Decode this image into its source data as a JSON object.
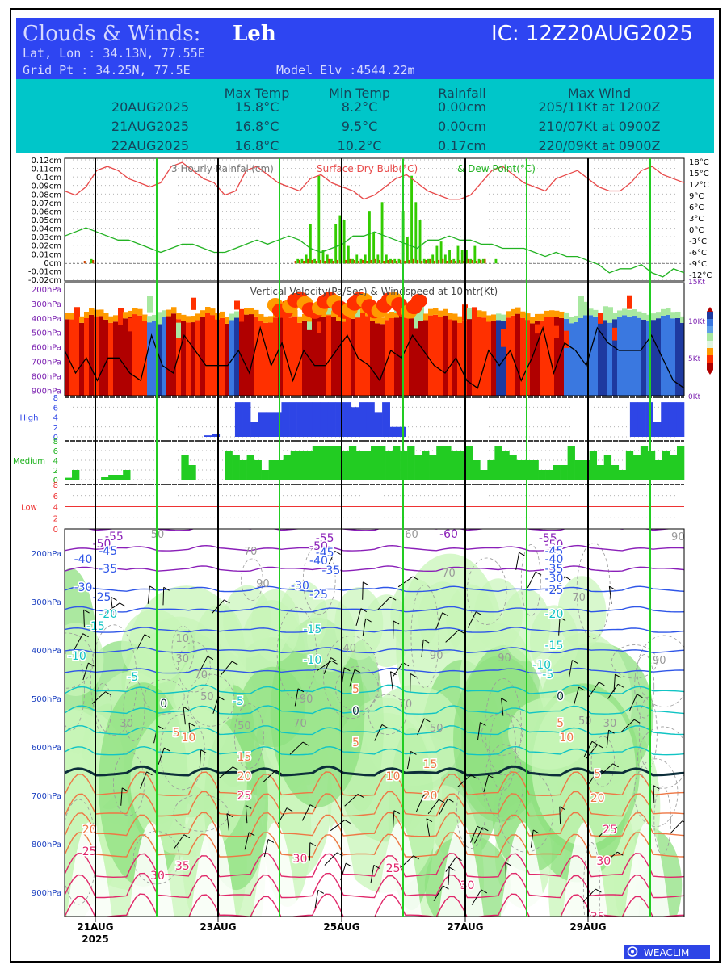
{
  "header": {
    "title_prefix": "Clouds & Winds:",
    "station": "Leh",
    "ic": "IC: 12Z20AUG2025",
    "latlon": "Lat, Lon : 34.13N, 77.55E",
    "gridpt": "Grid Pt  : 34.25N, 77.5E",
    "model_elv": "Model Elv :4544.22m",
    "colors": {
      "header_bg": "#2e45f2",
      "summary_bg": "#00c6c9",
      "title_text": "#d6d9ff"
    }
  },
  "summary": {
    "headers": [
      "Max Temp",
      "Min Temp",
      "Rainfall",
      "Max Wind"
    ],
    "rows": [
      {
        "date": "20AUG2025",
        "max_temp": "15.8°C",
        "min_temp": "8.2°C",
        "rainfall": "0.00cm",
        "max_wind": "205/11Kt at 1200Z"
      },
      {
        "date": "21AUG2025",
        "max_temp": "16.8°C",
        "min_temp": "9.5°C",
        "rainfall": "0.00cm",
        "max_wind": "210/07Kt at 0900Z"
      },
      {
        "date": "22AUG2025",
        "max_temp": "16.8°C",
        "min_temp": "10.2°C",
        "rainfall": "0.17cm",
        "max_wind": "220/09Kt at 0900Z"
      }
    ]
  },
  "chart_data": [
    {
      "type": "bar",
      "panel": "rain-temp",
      "title": "3 Hourly Rainfall(cm)",
      "title2": "Surface Dry Bulb(°C)",
      "title3": "& Dew Point(°C)",
      "ylabels_left": [
        "0.12cm",
        "0.11cm",
        "0.1cm",
        "0.09cm",
        "0.08cm",
        "0.07cm",
        "0.06cm",
        "0.05cm",
        "0.04cm",
        "0.03cm",
        "0.02cm",
        "0.01cm",
        "0cm",
        "-0.01cm",
        "-0.02cm"
      ],
      "ylabels_right": [
        "18°C",
        "15°C",
        "12°C",
        "9°C",
        "6°C",
        "3°C",
        "0°C",
        "-3°C",
        "-6°C",
        "-9°C",
        "-12°C"
      ],
      "ylim_rain": [
        -0.02,
        0.12
      ],
      "ylim_temp": [
        -12,
        18
      ],
      "rain": [
        0,
        0,
        0,
        0,
        0,
        0,
        0.005,
        0,
        0,
        0,
        0,
        0,
        0,
        0,
        0,
        0,
        0,
        0,
        0,
        0,
        0,
        0,
        0,
        0,
        0,
        0,
        0,
        0,
        0,
        0,
        0,
        0,
        0,
        0,
        0,
        0,
        0,
        0,
        0,
        0,
        0,
        0,
        0,
        0,
        0,
        0,
        0,
        0,
        0,
        0,
        0,
        0,
        0,
        0,
        0,
        0.005,
        0.005,
        0.01,
        0.045,
        0.005,
        0.1,
        0.015,
        0.01,
        0.005,
        0.045,
        0.055,
        0.05,
        0.02,
        0.005,
        0.01,
        0.005,
        0.01,
        0.06,
        0.035,
        0.01,
        0.07,
        0.01,
        0.005,
        0.005,
        0.005,
        0.06,
        0.03,
        0.1,
        0.07,
        0.05,
        0.005,
        0.005,
        0.01,
        0.02,
        0.025,
        0.01,
        0.015,
        0.005,
        0.02,
        0.015,
        0.015,
        0.005,
        0.02,
        0.005,
        0.005,
        0,
        0,
        0.005,
        0,
        0,
        0,
        0,
        0,
        0,
        0,
        0,
        0,
        0,
        0,
        0,
        0,
        0,
        0,
        0,
        0,
        0,
        0,
        0,
        0,
        0,
        0,
        0,
        0,
        0,
        0,
        0,
        0,
        0,
        0,
        0,
        0,
        0,
        0,
        0,
        0,
        0,
        0,
        0,
        0,
        0,
        0,
        0
      ],
      "rain_secondary": [
        0,
        0,
        0,
        0,
        0.003,
        0,
        0.004,
        0,
        0,
        0,
        0,
        0,
        0,
        0,
        0,
        0,
        0,
        0,
        0,
        0,
        0,
        0,
        0,
        0,
        0,
        0,
        0,
        0,
        0,
        0,
        0,
        0,
        0,
        0,
        0,
        0,
        0,
        0,
        0,
        0,
        0,
        0,
        0,
        0,
        0,
        0,
        0,
        0,
        0,
        0,
        0,
        0,
        0,
        0,
        0.003,
        0.004,
        0.003,
        0.005,
        0.004,
        0.003,
        0.004,
        0.003,
        0.005,
        0.003,
        0.004,
        0.003,
        0.004,
        0.005,
        0.004,
        0.003,
        0.004,
        0.003,
        0.004,
        0.005,
        0.004,
        0.003,
        0.004,
        0.004,
        0.003,
        0.004,
        0.003,
        0.004,
        0.005,
        0.004,
        0.003,
        0.004,
        0.005,
        0.003,
        0.004,
        0.005,
        0.003,
        0.004,
        0.003,
        0.004,
        0.003,
        0.005,
        0.004,
        0.003,
        0.004,
        0.005,
        0,
        0,
        0,
        0,
        0,
        0,
        0,
        0,
        0,
        0,
        0,
        0,
        0,
        0,
        0,
        0,
        0,
        0,
        0,
        0,
        0,
        0,
        0,
        0,
        0,
        0,
        0,
        0,
        0,
        0,
        0,
        0,
        0,
        0,
        0,
        0,
        0,
        0,
        0,
        0,
        0,
        0,
        0
      ],
      "dry_bulb": [
        10,
        9,
        11,
        15,
        16,
        15,
        13,
        12,
        11,
        12,
        16,
        17,
        15,
        13,
        12,
        9,
        10,
        15,
        16,
        14,
        12,
        11,
        10,
        13,
        14,
        12,
        11,
        10,
        8,
        9,
        11,
        13,
        14,
        12,
        10,
        9,
        8,
        8,
        9,
        12,
        15,
        16,
        14,
        12,
        11,
        10,
        13,
        14,
        15,
        13,
        11,
        10,
        10,
        12,
        15,
        16,
        14,
        13,
        12
      ],
      "dew_point": [
        -1,
        0,
        1,
        0,
        -1,
        -2,
        -2,
        -3,
        -4,
        -5,
        -4,
        -3,
        -3,
        -4,
        -5,
        -5,
        -4,
        -3,
        -2,
        -3,
        -2,
        -1,
        -2,
        -4,
        -5,
        -4,
        -3,
        -1,
        -1,
        0,
        -1,
        -2,
        -3,
        -4,
        -2,
        -2,
        -1,
        -2,
        -2,
        -3,
        -3,
        -4,
        -4,
        -4,
        -5,
        -6,
        -5,
        -6,
        -6,
        -7,
        -8,
        -10,
        -9,
        -9,
        -8,
        -10,
        -11,
        -9,
        -10
      ],
      "colors": {
        "rain": "#33cc00",
        "rain_secondary": "#cc4400",
        "dry_bulb": "#e84a4a",
        "dew_point": "#23b323"
      }
    },
    {
      "type": "heatmap",
      "panel": "vertical-velocity",
      "title": "Vertical Velocity(Pa/Sec) & Windspeed at 10mtr(Kt)",
      "ylabels_left": [
        "200hPa",
        "300hPa",
        "400hPa",
        "500hPa",
        "600hPa",
        "700hPa",
        "800hPa",
        "900hPa"
      ],
      "ylabels_right": [
        "15Kt",
        "10Kt",
        "5Kt",
        "0Kt"
      ],
      "ylim_wind": [
        0,
        15
      ],
      "wind10m": [
        6,
        3,
        5,
        2,
        5,
        5,
        3,
        2,
        8,
        4,
        3,
        8,
        6,
        4,
        4,
        4,
        6,
        3,
        9,
        4,
        7,
        2,
        6,
        4,
        4,
        6,
        8,
        5,
        4,
        2,
        6,
        5,
        8,
        6,
        4,
        3,
        5,
        2,
        1,
        6,
        4,
        6,
        2,
        5,
        9,
        3,
        7,
        6,
        4,
        9,
        7,
        6,
        6,
        6,
        8,
        5,
        2,
        1
      ],
      "colors": {
        "positive_strong": "#b00000",
        "positive": "#ff3000",
        "positive_weak": "#ff9a00",
        "neutral": "#ffffff",
        "negative_weak": "#a8e8a0",
        "negative": "#3a78e0",
        "negative_strong": "#1e3aa0",
        "wind_line": "#000000"
      }
    },
    {
      "type": "bar",
      "panel": "high-cloud",
      "label": "High",
      "yticks": [
        "8",
        "6",
        "4",
        "2",
        "0"
      ],
      "ylim": [
        0,
        8
      ],
      "values": [
        0,
        0,
        0,
        0,
        0,
        0,
        0,
        0,
        0,
        0,
        0,
        0,
        0,
        0,
        0,
        0,
        0,
        0,
        0.3,
        0.5,
        0,
        0,
        7,
        7,
        3,
        5,
        5,
        5,
        7,
        7,
        7,
        7,
        7,
        7,
        7,
        7,
        7,
        6,
        7,
        7,
        5,
        7,
        2,
        2,
        0,
        0,
        0,
        0,
        0,
        0,
        0,
        0,
        0,
        0,
        0,
        0,
        0,
        0,
        0,
        0,
        0,
        0,
        0,
        0,
        0,
        0,
        0,
        0,
        0,
        0,
        0,
        0,
        0,
        7,
        7,
        7,
        3,
        7,
        7,
        7
      ],
      "color": "#2e45e6"
    },
    {
      "type": "bar",
      "panel": "medium-cloud",
      "label": "Medium",
      "yticks": [
        "8",
        "6",
        "4",
        "2",
        "0"
      ],
      "ylim": [
        0,
        8
      ],
      "values": [
        0.4,
        2,
        0,
        0,
        0,
        0.5,
        1,
        1,
        2,
        0,
        0,
        0,
        0,
        0,
        0,
        0,
        5,
        3,
        0,
        0,
        0,
        0,
        6,
        5,
        4,
        5,
        4,
        2,
        4,
        4,
        5,
        6,
        6,
        6,
        7,
        7,
        7,
        7,
        6,
        7,
        6,
        6,
        7,
        7,
        6,
        7,
        6,
        7,
        5,
        6,
        5,
        7,
        7,
        6,
        6,
        7,
        4,
        2,
        4,
        7,
        6,
        5,
        4,
        4,
        4,
        2,
        2,
        3,
        3,
        7,
        4,
        4,
        6,
        3,
        5,
        3,
        2,
        6,
        5,
        7,
        6,
        4,
        6,
        5,
        7
      ],
      "color": "#22cc22"
    },
    {
      "type": "bar",
      "panel": "low-cloud",
      "label": "Low",
      "yticks": [
        "8",
        "6",
        "4",
        "2",
        "0"
      ],
      "ylim": [
        0,
        8
      ],
      "threshold": 4,
      "colors": {
        "threshold_line": "#ee3333",
        "axis": "#ee3333"
      }
    },
    {
      "type": "line",
      "panel": "cross-section",
      "ylabels": [
        "200hPa",
        "300hPa",
        "400hPa",
        "500hPa",
        "600hPa",
        "700hPa",
        "800hPa",
        "900hPa"
      ],
      "ylim": [
        150,
        950
      ],
      "temperature_contours": [
        -60,
        -55,
        -50,
        -45,
        -40,
        -35,
        -30,
        -25,
        -20,
        -15,
        -10,
        -5,
        0,
        5,
        10,
        15,
        20,
        25,
        30,
        35
      ],
      "rh_contours": [
        30,
        50,
        70,
        90
      ],
      "temp_labels": [
        {
          "v": "-55",
          "x": 0.08,
          "p": 165
        },
        {
          "v": "-50",
          "x": 0.06,
          "p": 180
        },
        {
          "v": "-45",
          "x": 0.07,
          "p": 195
        },
        {
          "v": "-40",
          "x": 0.03,
          "p": 212
        },
        {
          "v": "-35",
          "x": 0.07,
          "p": 232
        },
        {
          "v": "-30",
          "x": 0.03,
          "p": 270
        },
        {
          "v": "-25",
          "x": 0.06,
          "p": 290
        },
        {
          "v": "-20",
          "x": 0.07,
          "p": 325
        },
        {
          "v": "-15",
          "x": 0.05,
          "p": 350
        },
        {
          "v": "-10",
          "x": 0.02,
          "p": 412
        },
        {
          "v": "-5",
          "x": 0.11,
          "p": 455
        },
        {
          "v": "0",
          "x": 0.16,
          "p": 510
        },
        {
          "v": "-60",
          "x": 0.62,
          "p": 160
        },
        {
          "v": "-55",
          "x": 0.42,
          "p": 168
        },
        {
          "v": "-50",
          "x": 0.41,
          "p": 185
        },
        {
          "v": "-45",
          "x": 0.42,
          "p": 198
        },
        {
          "v": "-40",
          "x": 0.41,
          "p": 215
        },
        {
          "v": "-35",
          "x": 0.43,
          "p": 235
        },
        {
          "v": "-30",
          "x": 0.38,
          "p": 267
        },
        {
          "v": "-25",
          "x": 0.41,
          "p": 285
        },
        {
          "v": "-15",
          "x": 0.4,
          "p": 357
        },
        {
          "v": "-10",
          "x": 0.4,
          "p": 420
        },
        {
          "v": "5",
          "x": 0.47,
          "p": 480
        },
        {
          "v": "0",
          "x": 0.47,
          "p": 525
        },
        {
          "v": "5",
          "x": 0.47,
          "p": 590
        },
        {
          "v": "10",
          "x": 0.53,
          "p": 660
        },
        {
          "v": "15",
          "x": 0.59,
          "p": 635
        },
        {
          "v": "20",
          "x": 0.59,
          "p": 700
        },
        {
          "v": "25",
          "x": 0.53,
          "p": 850
        },
        {
          "v": "30",
          "x": 0.38,
          "p": 830
        },
        {
          "v": "30",
          "x": 0.65,
          "p": 885
        },
        {
          "v": "-55",
          "x": 0.78,
          "p": 168
        },
        {
          "v": "-50",
          "x": 0.79,
          "p": 182
        },
        {
          "v": "-45",
          "x": 0.79,
          "p": 195
        },
        {
          "v": "-40",
          "x": 0.79,
          "p": 212
        },
        {
          "v": "-35",
          "x": 0.79,
          "p": 232
        },
        {
          "v": "-30",
          "x": 0.79,
          "p": 252
        },
        {
          "v": "-25",
          "x": 0.79,
          "p": 275
        },
        {
          "v": "-20",
          "x": 0.79,
          "p": 325
        },
        {
          "v": "-15",
          "x": 0.79,
          "p": 390
        },
        {
          "v": "-10",
          "x": 0.77,
          "p": 430
        },
        {
          "v": "-5",
          "x": 0.78,
          "p": 450
        },
        {
          "v": "0",
          "x": 0.8,
          "p": 495
        },
        {
          "v": "5",
          "x": 0.8,
          "p": 550
        },
        {
          "v": "10",
          "x": 0.81,
          "p": 580
        },
        {
          "v": "5",
          "x": 0.86,
          "p": 655
        },
        {
          "v": "20",
          "x": 0.86,
          "p": 705
        },
        {
          "v": "25",
          "x": 0.88,
          "p": 770
        },
        {
          "v": "30",
          "x": 0.87,
          "p": 835
        },
        {
          "v": "35",
          "x": 0.86,
          "p": 950
        },
        {
          "v": "5",
          "x": 0.18,
          "p": 570
        },
        {
          "v": "10",
          "x": 0.2,
          "p": 580
        },
        {
          "v": "15",
          "x": 0.29,
          "p": 620
        },
        {
          "v": "20",
          "x": 0.29,
          "p": 660
        },
        {
          "v": "25",
          "x": 0.29,
          "p": 700
        },
        {
          "v": "20",
          "x": 0.04,
          "p": 770
        },
        {
          "v": "25",
          "x": 0.04,
          "p": 815
        },
        {
          "v": "30",
          "x": 0.15,
          "p": 865
        },
        {
          "v": "35",
          "x": 0.19,
          "p": 845
        },
        {
          "v": "-5",
          "x": 0.28,
          "p": 505
        }
      ],
      "rh_labels": [
        {
          "v": "50",
          "x": 0.15,
          "p": 160
        },
        {
          "v": "70",
          "x": 0.3,
          "p": 195
        },
        {
          "v": "90",
          "x": 0.32,
          "p": 262
        },
        {
          "v": "10",
          "x": 0.19,
          "p": 375
        },
        {
          "v": "30",
          "x": 0.19,
          "p": 417
        },
        {
          "v": "70",
          "x": 0.22,
          "p": 450
        },
        {
          "v": "50",
          "x": 0.23,
          "p": 495
        },
        {
          "v": "50",
          "x": 0.29,
          "p": 555
        },
        {
          "v": "70",
          "x": 0.38,
          "p": 550
        },
        {
          "v": "30",
          "x": 0.1,
          "p": 550
        },
        {
          "v": "90",
          "x": 0.39,
          "p": 500
        },
        {
          "v": "70",
          "x": 0.55,
          "p": 510
        },
        {
          "v": "90",
          "x": 0.6,
          "p": 410
        },
        {
          "v": "90",
          "x": 0.71,
          "p": 415
        },
        {
          "v": "50",
          "x": 0.6,
          "p": 560
        },
        {
          "v": "70",
          "x": 0.83,
          "p": 290
        },
        {
          "v": "90",
          "x": 0.96,
          "p": 420
        },
        {
          "v": "30",
          "x": 0.88,
          "p": 550
        },
        {
          "v": "50",
          "x": 0.84,
          "p": 545
        },
        {
          "v": "90",
          "x": 0.99,
          "p": 165
        },
        {
          "v": "70",
          "x": 0.62,
          "p": 240
        },
        {
          "v": "60",
          "x": 0.56,
          "p": 160
        },
        {
          "v": "40",
          "x": 0.46,
          "p": 395
        }
      ],
      "colors": {
        "rh_fill": "#c8f5b8",
        "rh_fill_strong": "#8fe080",
        "freezing": "#0c2e3a",
        "warm": "#e0286a",
        "mid": "#ee7744",
        "cool": "#11c4c4",
        "cold": "#2f56e8",
        "coldest": "#8a1fb8"
      }
    }
  ],
  "xaxis": {
    "day_labels": [
      "21AUG",
      "23AUG",
      "25AUG",
      "27AUG",
      "29AUG"
    ],
    "year": "2025"
  },
  "footer": {
    "brand": "WEACLIM",
    "brand_color": "#2e45e6"
  }
}
